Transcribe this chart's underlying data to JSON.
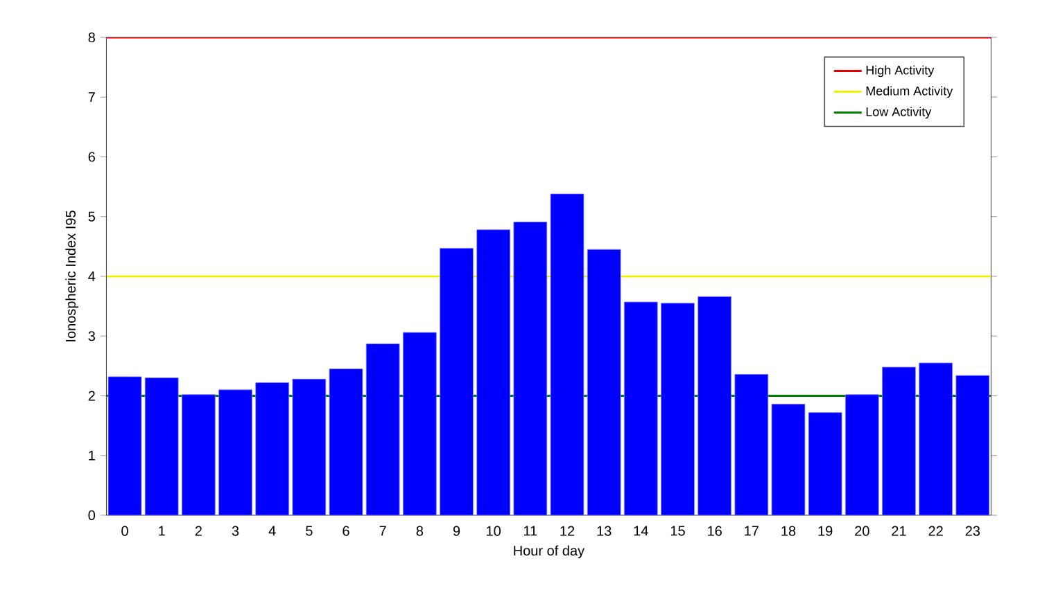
{
  "chart_data": {
    "type": "bar",
    "xlabel": "Hour of day",
    "ylabel": "Ionospheric Index I95",
    "categories": [
      "0",
      "1",
      "2",
      "3",
      "4",
      "5",
      "6",
      "7",
      "8",
      "9",
      "10",
      "11",
      "12",
      "13",
      "14",
      "15",
      "16",
      "17",
      "18",
      "19",
      "20",
      "21",
      "22",
      "23"
    ],
    "values": [
      2.32,
      2.3,
      2.02,
      2.1,
      2.22,
      2.28,
      2.45,
      2.87,
      3.06,
      4.47,
      4.78,
      4.91,
      5.38,
      4.45,
      3.57,
      3.55,
      3.66,
      2.36,
      1.86,
      1.72,
      2.02,
      2.48,
      2.55,
      2.34
    ],
    "color": "#0000ff",
    "ylim": [
      0,
      8
    ],
    "yticks": [
      0,
      1,
      2,
      3,
      4,
      5,
      6,
      7,
      8
    ],
    "grid": false,
    "legend": "top right",
    "ref_lines": [
      {
        "axis": "y",
        "value": 8,
        "label": "High Activity",
        "color": "#e00000"
      },
      {
        "axis": "y",
        "value": 4,
        "label": "Medium Activity",
        "color": "#f0f000"
      },
      {
        "axis": "y",
        "value": 2,
        "label": "Low Activity",
        "color": "#008000"
      }
    ]
  }
}
